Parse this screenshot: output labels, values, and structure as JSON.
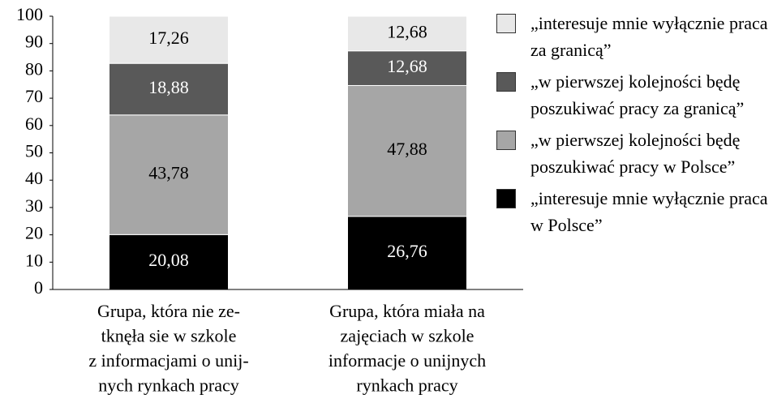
{
  "chart_data": {
    "type": "stacked_bar",
    "categories": [
      [
        "Grupa, która nie ze-",
        "tknęła sie w szkole",
        "z informacjami o unij-",
        "nych rynkach pracy"
      ],
      [
        "Grupa, która miała na",
        "zajęciach w szkole",
        "informacje o unijnych",
        "rynkach pracy"
      ]
    ],
    "series": [
      {
        "name": "„interesuje mnie wyłącznie praca w Polsce”",
        "color": "#000000",
        "label_color": "#ffffff",
        "values": [
          20.08,
          26.76
        ],
        "value_labels": [
          "20,08",
          "26,76"
        ]
      },
      {
        "name": "„w pierwszej kolejności będę poszukiwać pracy w Polsce”",
        "color": "#a6a6a6",
        "label_color": "#000000",
        "values": [
          43.78,
          47.88
        ],
        "value_labels": [
          "43,78",
          "47,88"
        ]
      },
      {
        "name": "„w pierwszej kolejności będę poszukiwać pracy za granicą”",
        "color": "#595959",
        "label_color": "#ffffff",
        "values": [
          18.88,
          12.68
        ],
        "value_labels": [
          "18,88",
          "12,68"
        ]
      },
      {
        "name": "„interesuje mnie wyłącznie praca za granicą”",
        "color": "#e8e8e8",
        "label_color": "#000000",
        "values": [
          17.26,
          12.68
        ],
        "value_labels": [
          "17,26",
          "12,68"
        ]
      }
    ],
    "ylim": [
      0,
      100
    ],
    "yticks": [
      0,
      10,
      20,
      30,
      40,
      50,
      60,
      70,
      80,
      90,
      100
    ],
    "grid": false,
    "legend": "right"
  }
}
